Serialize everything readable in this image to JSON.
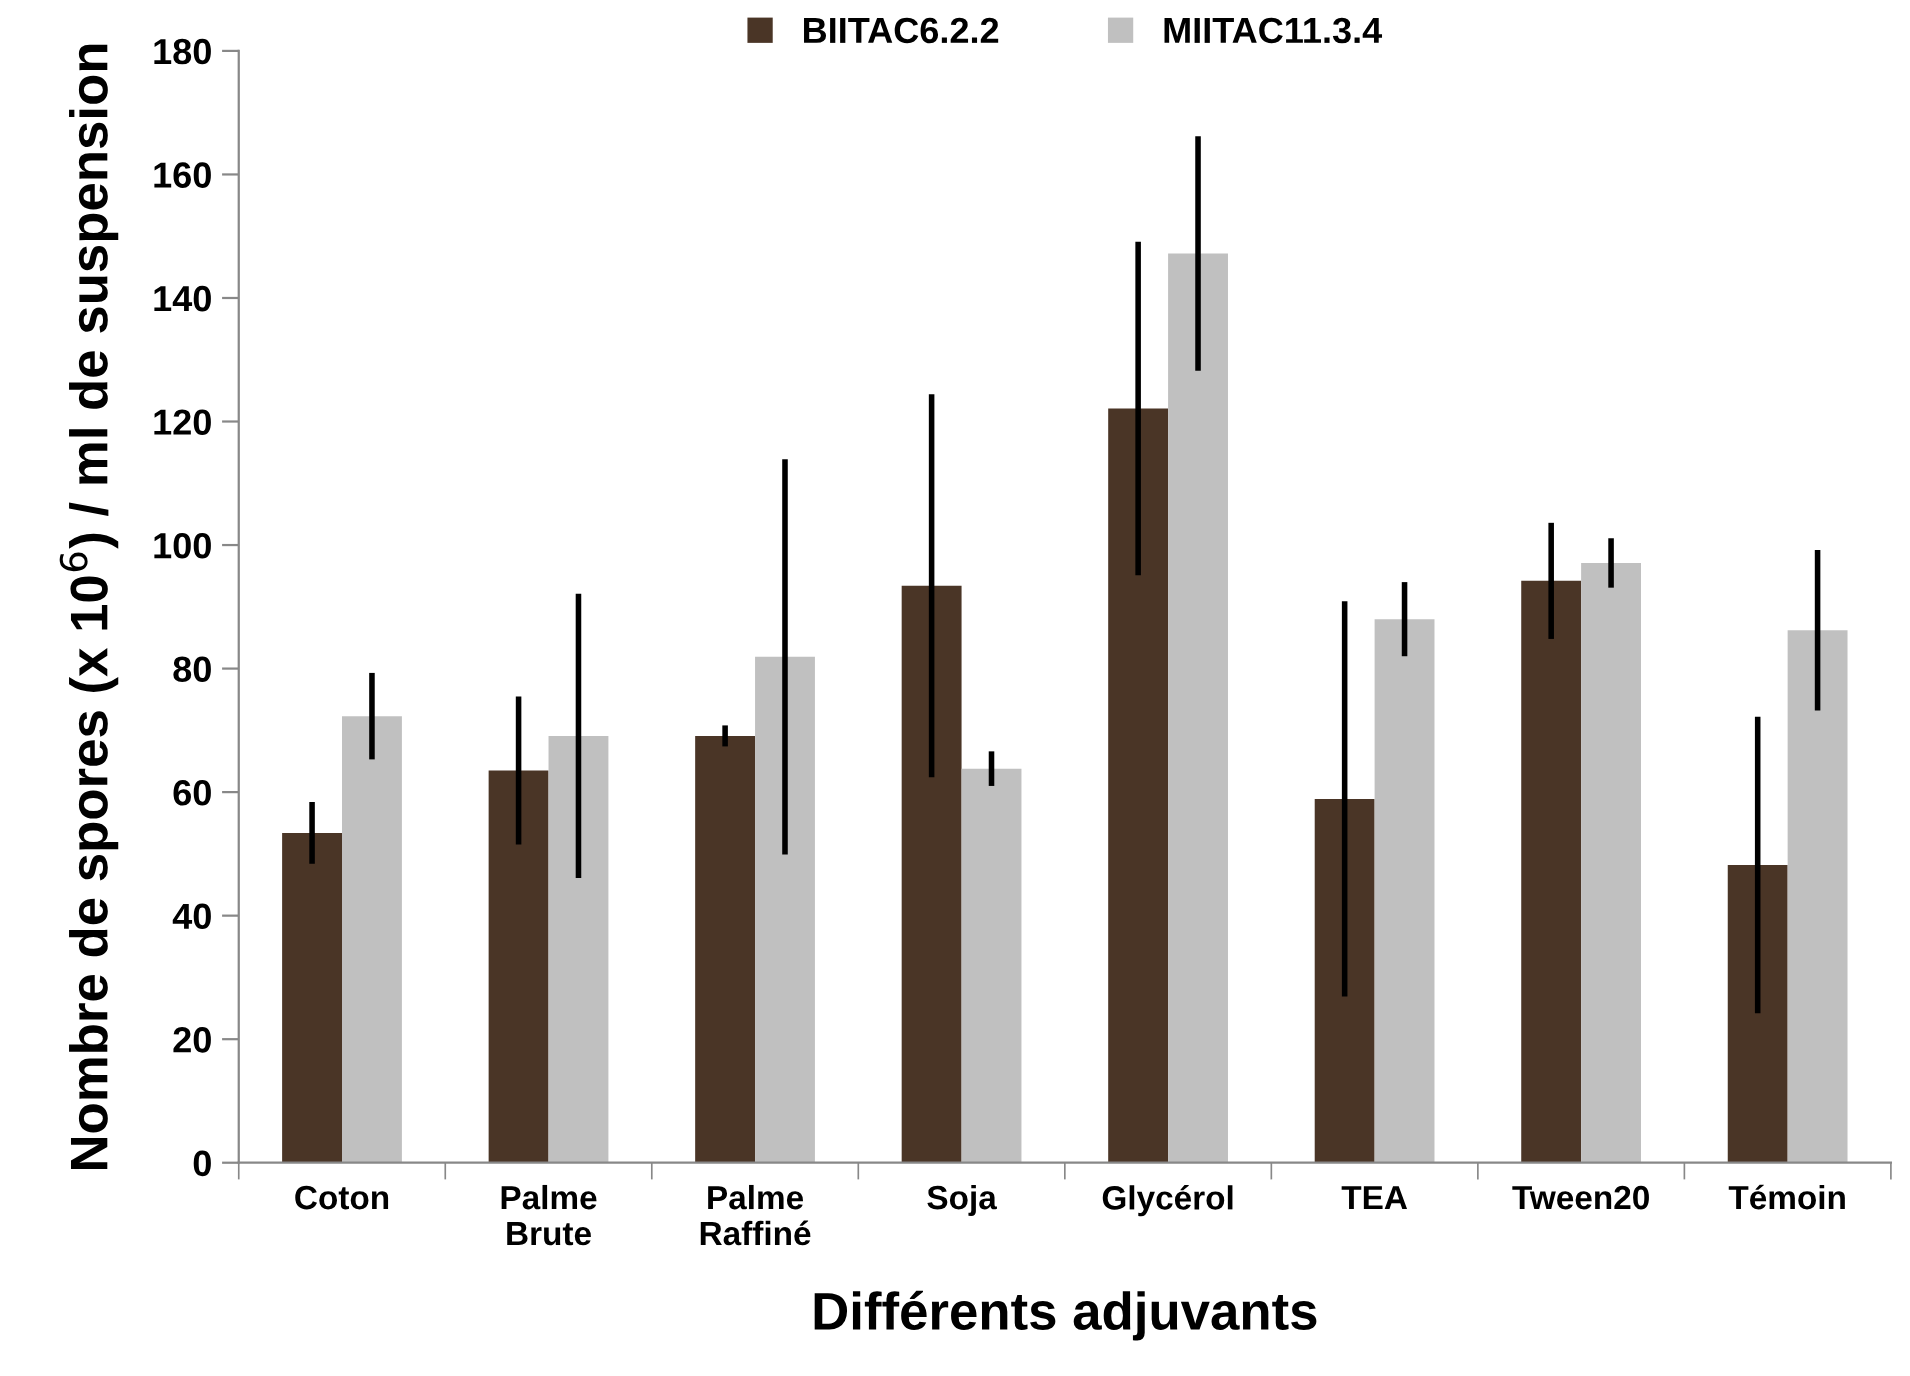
{
  "chart_data": {
    "type": "bar",
    "xlabel": "Différents adjuvants",
    "ylabel": "Nombre de spores (x 10$^{6}$) / ml de suspension",
    "categories": [
      "Coton",
      "Palme\nBrute",
      "Palme\nRaffiné",
      "Soja",
      "Glycérol",
      "TEA",
      "Tween20",
      "Témoin"
    ],
    "series": [
      {
        "name": "BIITAC6.2.2",
        "color": "#4a3526",
        "values": [
          53.4,
          63.5,
          69.1,
          93.4,
          122.1,
          58.9,
          94.2,
          48.2
        ],
        "errors": [
          5,
          12,
          1.7,
          31,
          27,
          32,
          9.4,
          24
        ]
      },
      {
        "name": "MIITAC11.3.4",
        "color": "#c0c0c0",
        "values": [
          72.3,
          69.1,
          81.9,
          63.8,
          147.2,
          88,
          97.1,
          86.2
        ],
        "errors": [
          7,
          23,
          32,
          2.8,
          19,
          6,
          4,
          13
        ]
      }
    ],
    "ylim": [
      0,
      180
    ],
    "yticks": [
      0,
      20,
      40,
      60,
      80,
      100,
      120,
      140,
      160,
      180
    ],
    "grid": false,
    "legend": "top"
  }
}
